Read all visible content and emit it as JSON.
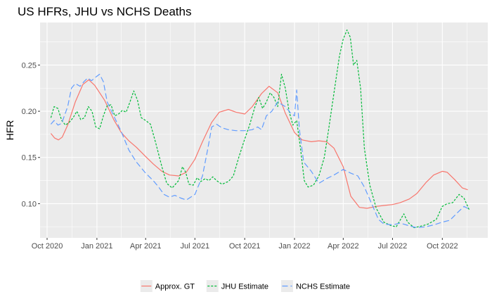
{
  "chart_data": {
    "type": "line",
    "title": "US HFRs, JHU vs NCHS Deaths",
    "xlabel": "",
    "ylabel": "HFR",
    "xlim": [
      "2020-09-18",
      "2022-12-24"
    ],
    "ylim": [
      0.063,
      0.296
    ],
    "x_ticks": [
      {
        "date": "2020-10-01",
        "label": "Oct 2020"
      },
      {
        "date": "2021-01-01",
        "label": "Jan 2021"
      },
      {
        "date": "2021-04-01",
        "label": "Apr 2021"
      },
      {
        "date": "2021-07-01",
        "label": "Jul 2021"
      },
      {
        "date": "2021-10-01",
        "label": "Oct 2021"
      },
      {
        "date": "2022-01-01",
        "label": "Jan 2022"
      },
      {
        "date": "2022-04-01",
        "label": "Apr 2022"
      },
      {
        "date": "2022-07-01",
        "label": "Jul 2022"
      },
      {
        "date": "2022-10-01",
        "label": "Oct 2022"
      }
    ],
    "y_ticks": [
      0.1,
      0.15,
      0.2,
      0.25
    ],
    "y_tick_labels": [
      "0.10",
      "0.15",
      "0.20",
      "0.25"
    ],
    "grid": true,
    "legend_position": "bottom",
    "series": [
      {
        "name": "Approx. GT",
        "color": "#F8766D",
        "dash": "solid",
        "points": [
          [
            "2020-10-08",
            0.176
          ],
          [
            "2020-10-15",
            0.171
          ],
          [
            "2020-10-22",
            0.169
          ],
          [
            "2020-10-29",
            0.172
          ],
          [
            "2020-11-08",
            0.185
          ],
          [
            "2020-11-22",
            0.21
          ],
          [
            "2020-12-06",
            0.229
          ],
          [
            "2020-12-17",
            0.234
          ],
          [
            "2020-12-28",
            0.228
          ],
          [
            "2021-01-15",
            0.212
          ],
          [
            "2021-02-01",
            0.191
          ],
          [
            "2021-02-15",
            0.177
          ],
          [
            "2021-03-01",
            0.168
          ],
          [
            "2021-03-15",
            0.161
          ],
          [
            "2021-04-01",
            0.151
          ],
          [
            "2021-04-15",
            0.143
          ],
          [
            "2021-05-01",
            0.135
          ],
          [
            "2021-05-15",
            0.131
          ],
          [
            "2021-06-01",
            0.13
          ],
          [
            "2021-06-15",
            0.134
          ],
          [
            "2021-07-01",
            0.148
          ],
          [
            "2021-07-15",
            0.167
          ],
          [
            "2021-08-01",
            0.188
          ],
          [
            "2021-08-15",
            0.199
          ],
          [
            "2021-09-01",
            0.202
          ],
          [
            "2021-09-15",
            0.199
          ],
          [
            "2021-10-01",
            0.197
          ],
          [
            "2021-10-15",
            0.205
          ],
          [
            "2021-11-01",
            0.219
          ],
          [
            "2021-11-15",
            0.227
          ],
          [
            "2021-12-01",
            0.22
          ],
          [
            "2021-12-15",
            0.198
          ],
          [
            "2022-01-01",
            0.177
          ],
          [
            "2022-01-15",
            0.169
          ],
          [
            "2022-02-01",
            0.167
          ],
          [
            "2022-02-15",
            0.168
          ],
          [
            "2022-03-01",
            0.167
          ],
          [
            "2022-03-15",
            0.16
          ],
          [
            "2022-04-01",
            0.14
          ],
          [
            "2022-04-15",
            0.108
          ],
          [
            "2022-05-01",
            0.096
          ],
          [
            "2022-05-15",
            0.095
          ],
          [
            "2022-06-01",
            0.097
          ],
          [
            "2022-06-15",
            0.098
          ],
          [
            "2022-07-01",
            0.099
          ],
          [
            "2022-07-15",
            0.101
          ],
          [
            "2022-08-01",
            0.105
          ],
          [
            "2022-08-15",
            0.111
          ],
          [
            "2022-09-01",
            0.123
          ],
          [
            "2022-09-15",
            0.131
          ],
          [
            "2022-10-01",
            0.135
          ],
          [
            "2022-10-10",
            0.134
          ],
          [
            "2022-10-24",
            0.126
          ],
          [
            "2022-11-07",
            0.117
          ],
          [
            "2022-11-17",
            0.115
          ]
        ]
      },
      {
        "name": "JHU Estimate",
        "color": "#00BA38",
        "dash": "3,2",
        "points": [
          [
            "2020-10-08",
            0.193
          ],
          [
            "2020-10-14",
            0.205
          ],
          [
            "2020-10-21",
            0.203
          ],
          [
            "2020-10-28",
            0.19
          ],
          [
            "2020-11-04",
            0.185
          ],
          [
            "2020-11-11",
            0.188
          ],
          [
            "2020-11-18",
            0.193
          ],
          [
            "2020-11-25",
            0.2
          ],
          [
            "2020-12-02",
            0.191
          ],
          [
            "2020-12-09",
            0.193
          ],
          [
            "2020-12-16",
            0.205
          ],
          [
            "2020-12-23",
            0.2
          ],
          [
            "2020-12-30",
            0.183
          ],
          [
            "2021-01-06",
            0.181
          ],
          [
            "2021-01-13",
            0.195
          ],
          [
            "2021-01-20",
            0.206
          ],
          [
            "2021-01-27",
            0.207
          ],
          [
            "2021-02-03",
            0.195
          ],
          [
            "2021-02-10",
            0.197
          ],
          [
            "2021-02-17",
            0.201
          ],
          [
            "2021-02-24",
            0.199
          ],
          [
            "2021-03-03",
            0.21
          ],
          [
            "2021-03-10",
            0.222
          ],
          [
            "2021-03-17",
            0.212
          ],
          [
            "2021-03-24",
            0.193
          ],
          [
            "2021-04-01",
            0.19
          ],
          [
            "2021-04-10",
            0.186
          ],
          [
            "2021-04-20",
            0.165
          ],
          [
            "2021-05-01",
            0.14
          ],
          [
            "2021-05-10",
            0.122
          ],
          [
            "2021-05-20",
            0.117
          ],
          [
            "2021-06-01",
            0.125
          ],
          [
            "2021-06-08",
            0.14
          ],
          [
            "2021-06-14",
            0.134
          ],
          [
            "2021-06-20",
            0.121
          ],
          [
            "2021-06-28",
            0.12
          ],
          [
            "2021-07-05",
            0.128
          ],
          [
            "2021-07-12",
            0.124
          ],
          [
            "2021-07-20",
            0.127
          ],
          [
            "2021-07-27",
            0.125
          ],
          [
            "2021-08-03",
            0.129
          ],
          [
            "2021-08-10",
            0.125
          ],
          [
            "2021-08-20",
            0.121
          ],
          [
            "2021-09-01",
            0.124
          ],
          [
            "2021-09-10",
            0.13
          ],
          [
            "2021-09-20",
            0.15
          ],
          [
            "2021-10-01",
            0.17
          ],
          [
            "2021-10-10",
            0.185
          ],
          [
            "2021-10-20",
            0.205
          ],
          [
            "2021-10-27",
            0.215
          ],
          [
            "2021-11-03",
            0.203
          ],
          [
            "2021-11-10",
            0.21
          ],
          [
            "2021-11-17",
            0.22
          ],
          [
            "2021-11-24",
            0.215
          ],
          [
            "2021-12-01",
            0.205
          ],
          [
            "2021-12-08",
            0.24
          ],
          [
            "2021-12-15",
            0.225
          ],
          [
            "2021-12-22",
            0.2
          ],
          [
            "2021-12-29",
            0.185
          ],
          [
            "2022-01-05",
            0.19
          ],
          [
            "2022-01-12",
            0.16
          ],
          [
            "2022-01-19",
            0.125
          ],
          [
            "2022-01-26",
            0.118
          ],
          [
            "2022-02-05",
            0.12
          ],
          [
            "2022-02-15",
            0.13
          ],
          [
            "2022-02-25",
            0.15
          ],
          [
            "2022-03-05",
            0.18
          ],
          [
            "2022-03-15",
            0.22
          ],
          [
            "2022-03-25",
            0.26
          ],
          [
            "2022-04-01",
            0.278
          ],
          [
            "2022-04-08",
            0.288
          ],
          [
            "2022-04-14",
            0.28
          ],
          [
            "2022-04-20",
            0.25
          ],
          [
            "2022-04-26",
            0.255
          ],
          [
            "2022-05-03",
            0.225
          ],
          [
            "2022-05-10",
            0.16
          ],
          [
            "2022-05-20",
            0.12
          ],
          [
            "2022-06-01",
            0.095
          ],
          [
            "2022-06-15",
            0.08
          ],
          [
            "2022-06-29",
            0.076
          ],
          [
            "2022-07-08",
            0.075
          ],
          [
            "2022-07-15",
            0.082
          ],
          [
            "2022-07-22",
            0.089
          ],
          [
            "2022-07-29",
            0.08
          ],
          [
            "2022-08-10",
            0.074
          ],
          [
            "2022-08-25",
            0.076
          ],
          [
            "2022-09-05",
            0.078
          ],
          [
            "2022-09-20",
            0.083
          ],
          [
            "2022-10-01",
            0.097
          ],
          [
            "2022-10-10",
            0.1
          ],
          [
            "2022-10-20",
            0.101
          ],
          [
            "2022-11-01",
            0.11
          ],
          [
            "2022-11-10",
            0.106
          ],
          [
            "2022-11-20",
            0.093
          ]
        ]
      },
      {
        "name": "NCHS Estimate",
        "color": "#619CFF",
        "dash": "8,4",
        "points": [
          [
            "2020-10-08",
            0.186
          ],
          [
            "2020-10-14",
            0.19
          ],
          [
            "2020-10-21",
            0.185
          ],
          [
            "2020-10-28",
            0.187
          ],
          [
            "2020-11-08",
            0.205
          ],
          [
            "2020-11-15",
            0.225
          ],
          [
            "2020-11-22",
            0.23
          ],
          [
            "2020-12-01",
            0.227
          ],
          [
            "2020-12-08",
            0.232
          ],
          [
            "2020-12-15",
            0.236
          ],
          [
            "2020-12-22",
            0.233
          ],
          [
            "2020-12-30",
            0.237
          ],
          [
            "2021-01-06",
            0.24
          ],
          [
            "2021-01-13",
            0.232
          ],
          [
            "2021-01-20",
            0.21
          ],
          [
            "2021-02-01",
            0.195
          ],
          [
            "2021-02-15",
            0.178
          ],
          [
            "2021-03-01",
            0.158
          ],
          [
            "2021-03-15",
            0.145
          ],
          [
            "2021-04-01",
            0.133
          ],
          [
            "2021-04-15",
            0.125
          ],
          [
            "2021-04-25",
            0.118
          ],
          [
            "2021-05-05",
            0.11
          ],
          [
            "2021-05-15",
            0.107
          ],
          [
            "2021-05-25",
            0.109
          ],
          [
            "2021-06-05",
            0.106
          ],
          [
            "2021-06-15",
            0.104
          ],
          [
            "2021-07-01",
            0.11
          ],
          [
            "2021-07-15",
            0.13
          ],
          [
            "2021-07-25",
            0.16
          ],
          [
            "2021-08-01",
            0.183
          ],
          [
            "2021-08-10",
            0.186
          ],
          [
            "2021-08-20",
            0.182
          ],
          [
            "2021-09-01",
            0.18
          ],
          [
            "2021-09-15",
            0.179
          ],
          [
            "2021-10-01",
            0.179
          ],
          [
            "2021-10-15",
            0.18
          ],
          [
            "2021-10-25",
            0.183
          ],
          [
            "2021-11-01",
            0.18
          ],
          [
            "2021-11-10",
            0.195
          ],
          [
            "2021-11-20",
            0.2
          ],
          [
            "2021-12-01",
            0.21
          ],
          [
            "2021-12-15",
            0.205
          ],
          [
            "2021-12-25",
            0.198
          ],
          [
            "2022-01-01",
            0.195
          ],
          [
            "2022-01-05",
            0.223
          ],
          [
            "2022-01-10",
            0.18
          ],
          [
            "2022-01-18",
            0.145
          ],
          [
            "2022-02-01",
            0.135
          ],
          [
            "2022-02-15",
            0.122
          ],
          [
            "2022-03-01",
            0.127
          ],
          [
            "2022-03-15",
            0.131
          ],
          [
            "2022-04-01",
            0.137
          ],
          [
            "2022-04-15",
            0.133
          ],
          [
            "2022-04-28",
            0.13
          ],
          [
            "2022-05-10",
            0.118
          ],
          [
            "2022-05-25",
            0.098
          ],
          [
            "2022-06-05",
            0.083
          ],
          [
            "2022-06-15",
            0.078
          ],
          [
            "2022-07-01",
            0.077
          ],
          [
            "2022-07-15",
            0.079
          ],
          [
            "2022-08-01",
            0.076
          ],
          [
            "2022-08-15",
            0.074
          ],
          [
            "2022-09-01",
            0.075
          ],
          [
            "2022-09-15",
            0.077
          ],
          [
            "2022-10-01",
            0.08
          ],
          [
            "2022-10-15",
            0.082
          ],
          [
            "2022-11-01",
            0.092
          ],
          [
            "2022-11-10",
            0.097
          ],
          [
            "2022-11-20",
            0.094
          ]
        ]
      }
    ],
    "legend": [
      {
        "label": "Approx. GT",
        "series": 0
      },
      {
        "label": "JHU Estimate",
        "series": 1
      },
      {
        "label": "NCHS Estimate",
        "series": 2
      }
    ],
    "colors": {
      "panel_background": "#EBEBEB",
      "grid_major": "#FFFFFF",
      "tick_text": "#4D4D4D",
      "legend_key_background": "#EBEBEB"
    }
  }
}
